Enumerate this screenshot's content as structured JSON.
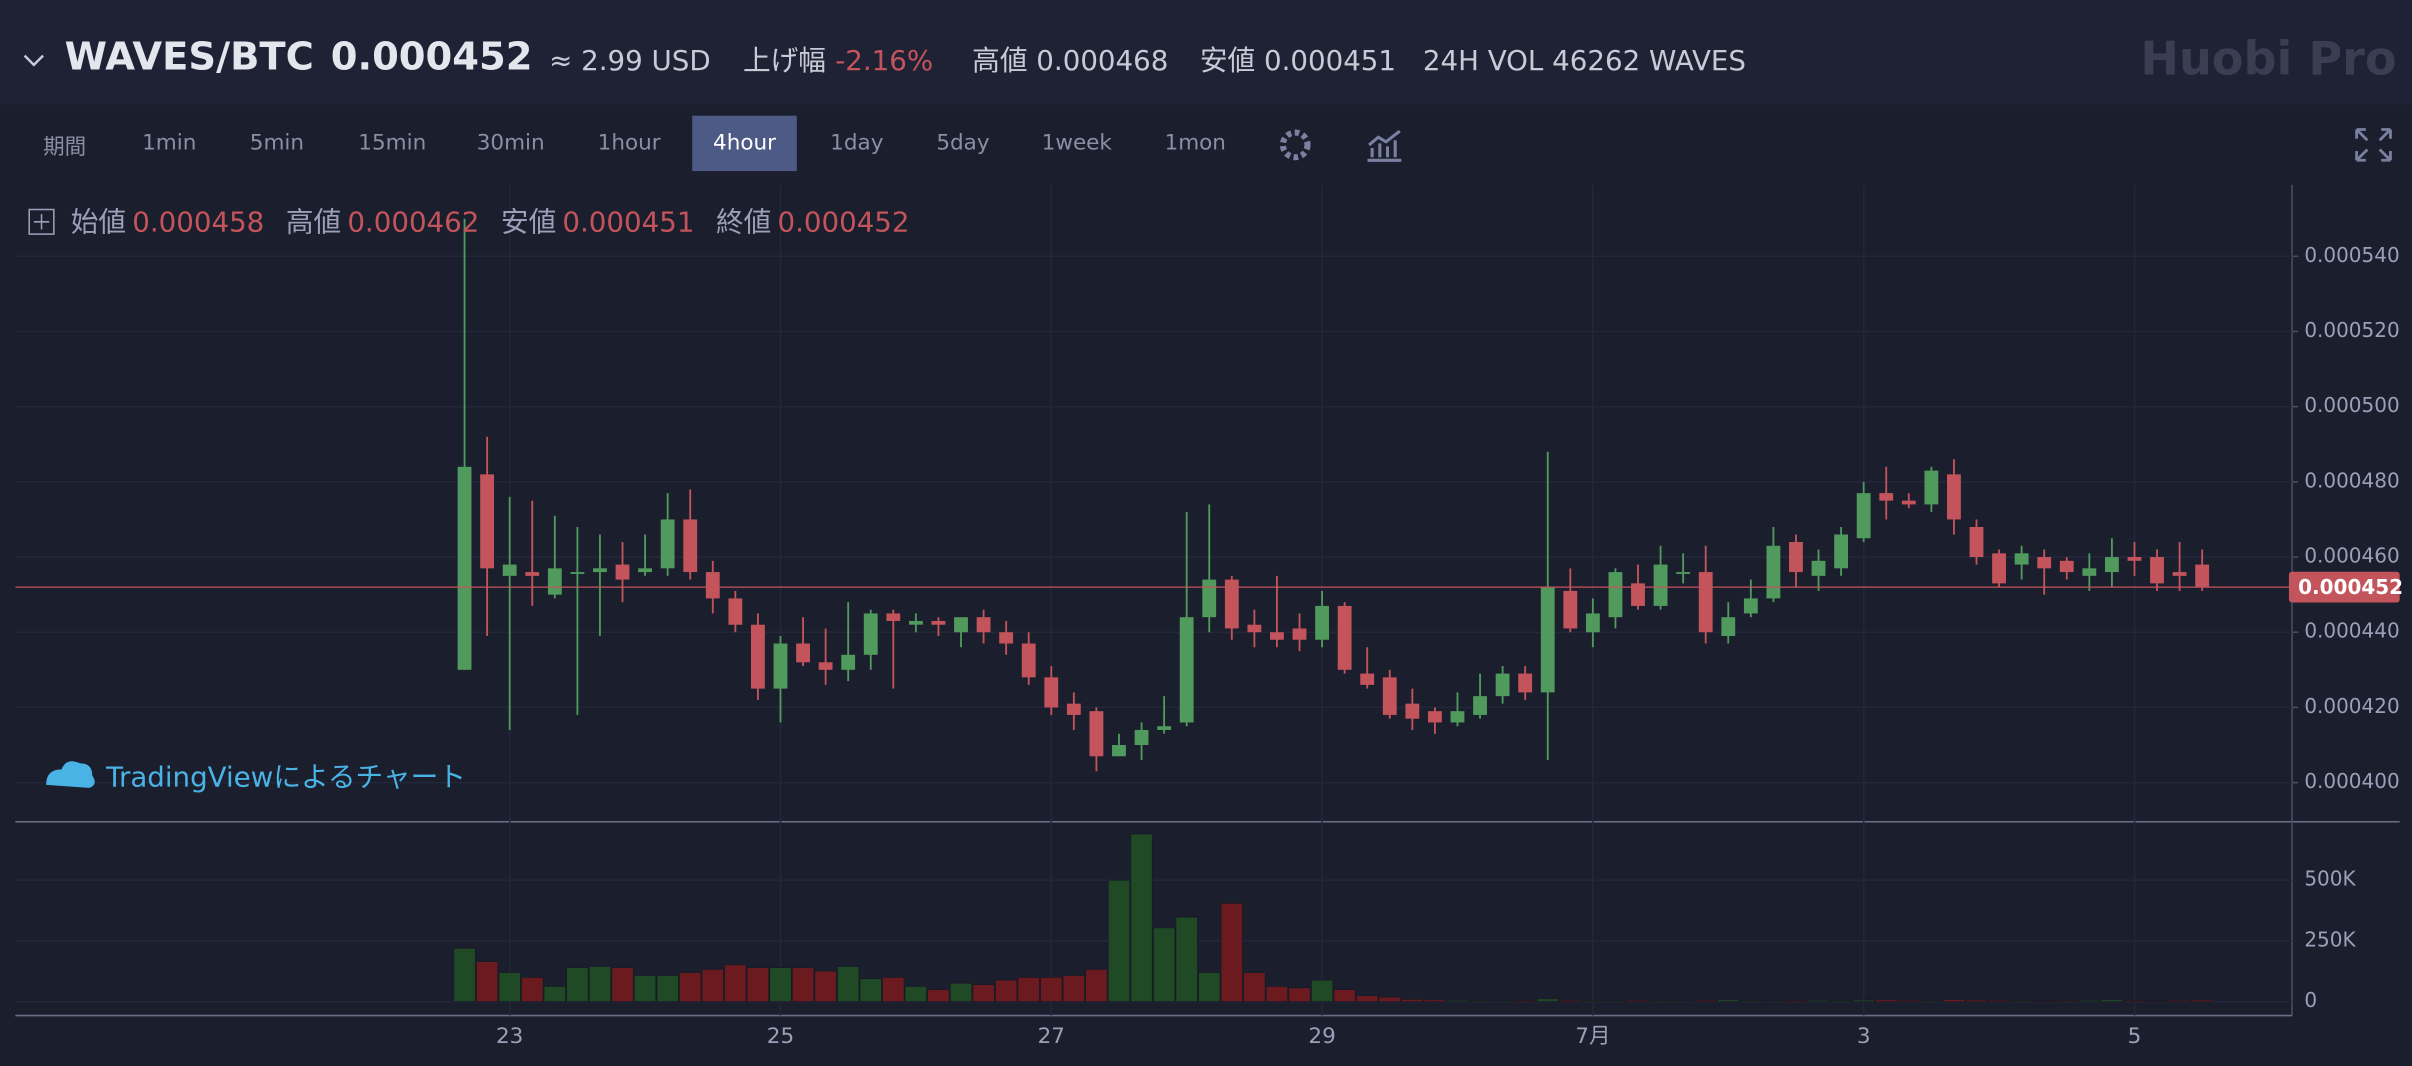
{
  "header": {
    "pair": "WAVES/BTC",
    "price": "0.000452",
    "usd": "≈ 2.99 USD",
    "change_label": "上げ幅",
    "change": "-2.16%",
    "high": "高値 0.000468",
    "low": "安値 0.000451",
    "volume": "24H VOL 46262 WAVES",
    "brand": "Huobi Pro"
  },
  "toolbar": {
    "period_label": "期間",
    "intervals": [
      "1min",
      "5min",
      "15min",
      "30min",
      "1hour",
      "4hour",
      "1day",
      "5day",
      "1week",
      "1mon"
    ],
    "active": "4hour"
  },
  "legend": [
    {
      "label": "始値",
      "value": "0.000458"
    },
    {
      "label": "高値",
      "value": "0.000462"
    },
    {
      "label": "安値",
      "value": "0.000451"
    },
    {
      "label": "終値",
      "value": "0.000452"
    }
  ],
  "watermark": "TradingViewによるチャート",
  "chart_data": [
    {
      "type": "candlestick",
      "up_color": "#4f9a5c",
      "down_color": "#c4545c",
      "categories": [
        null,
        null,
        "23",
        null,
        null,
        null,
        null,
        null,
        null,
        null,
        null,
        null,
        null,
        null,
        "25",
        null,
        null,
        null,
        null,
        null,
        null,
        null,
        null,
        null,
        null,
        null,
        "27",
        null,
        null,
        null,
        null,
        null,
        null,
        null,
        null,
        null,
        null,
        null,
        "29",
        null,
        null,
        null,
        null,
        null,
        null,
        null,
        null,
        null,
        null,
        null,
        "7月",
        null,
        null,
        null,
        null,
        null,
        null,
        null,
        null,
        null,
        null,
        null,
        "3",
        null,
        null,
        null,
        null,
        null,
        null,
        null,
        null,
        null,
        null,
        null,
        "5",
        null,
        null,
        null
      ],
      "open": [
        0.00043,
        0.000482,
        0.000455,
        0.000456,
        0.00045,
        0.000456,
        0.000456,
        0.000458,
        0.000456,
        0.000457,
        0.00047,
        0.000456,
        0.000449,
        0.000442,
        0.000425,
        0.000437,
        0.000432,
        0.00043,
        0.000434,
        0.000445,
        0.000442,
        0.000443,
        0.00044,
        0.000444,
        0.00044,
        0.000437,
        0.000428,
        0.000421,
        0.000419,
        0.000407,
        0.00041,
        0.000414,
        0.000416,
        0.000444,
        0.000454,
        0.000442,
        0.00044,
        0.000441,
        0.000438,
        0.000447,
        0.000429,
        0.000428,
        0.000421,
        0.000419,
        0.000416,
        0.000418,
        0.000423,
        0.000429,
        0.000424,
        0.000451,
        0.00044,
        0.000444,
        0.000453,
        0.000447,
        0.000456,
        0.000456,
        0.000439,
        0.000445,
        0.000449,
        0.000464,
        0.000455,
        0.000457,
        0.000465,
        0.000477,
        0.000475,
        0.000474,
        0.000482,
        0.000468,
        0.000461,
        0.000458,
        0.00046,
        0.000459,
        0.000455,
        0.000456,
        0.00046,
        0.00046,
        0.000456,
        0.000458
      ],
      "high": [
        0.00055,
        0.000492,
        0.000476,
        0.000475,
        0.000471,
        0.000468,
        0.000466,
        0.000464,
        0.000466,
        0.000477,
        0.000478,
        0.000459,
        0.000451,
        0.000445,
        0.000439,
        0.000444,
        0.000441,
        0.000448,
        0.000446,
        0.000446,
        0.000445,
        0.000444,
        0.000444,
        0.000446,
        0.000443,
        0.00044,
        0.000431,
        0.000424,
        0.00042,
        0.000413,
        0.000416,
        0.000423,
        0.000472,
        0.000474,
        0.000455,
        0.000446,
        0.000455,
        0.000445,
        0.000451,
        0.000448,
        0.000436,
        0.00043,
        0.000425,
        0.00042,
        0.000424,
        0.000429,
        0.000431,
        0.000431,
        0.000488,
        0.000457,
        0.000449,
        0.000457,
        0.000458,
        0.000463,
        0.000461,
        0.000463,
        0.000448,
        0.000454,
        0.000468,
        0.000466,
        0.000462,
        0.000468,
        0.00048,
        0.000484,
        0.000477,
        0.000484,
        0.000486,
        0.00047,
        0.000462,
        0.000463,
        0.000462,
        0.00046,
        0.000461,
        0.000465,
        0.000464,
        0.000462,
        0.000464,
        0.000462
      ],
      "low": [
        0.00043,
        0.000439,
        0.000414,
        0.000447,
        0.000449,
        0.000418,
        0.000439,
        0.000448,
        0.000455,
        0.000455,
        0.000454,
        0.000445,
        0.00044,
        0.000422,
        0.000416,
        0.000431,
        0.000426,
        0.000427,
        0.00043,
        0.000425,
        0.00044,
        0.000439,
        0.000436,
        0.000437,
        0.000434,
        0.000426,
        0.000418,
        0.000414,
        0.000403,
        0.000407,
        0.000406,
        0.000413,
        0.000415,
        0.00044,
        0.000438,
        0.000436,
        0.000436,
        0.000435,
        0.000436,
        0.000429,
        0.000425,
        0.000417,
        0.000414,
        0.000413,
        0.000415,
        0.000417,
        0.000421,
        0.000422,
        0.000406,
        0.00044,
        0.000436,
        0.000441,
        0.000446,
        0.000446,
        0.000453,
        0.000437,
        0.000437,
        0.000444,
        0.000448,
        0.000452,
        0.000451,
        0.000455,
        0.000464,
        0.00047,
        0.000473,
        0.000472,
        0.000466,
        0.000458,
        0.000452,
        0.000454,
        0.00045,
        0.000454,
        0.000451,
        0.000452,
        0.000455,
        0.000451,
        0.000451,
        0.000451
      ],
      "close": [
        0.000484,
        0.000457,
        0.000458,
        0.000455,
        0.000457,
        0.000456,
        0.000457,
        0.000454,
        0.000457,
        0.00047,
        0.000456,
        0.000449,
        0.000442,
        0.000425,
        0.000437,
        0.000432,
        0.00043,
        0.000434,
        0.000445,
        0.000443,
        0.000443,
        0.000442,
        0.000444,
        0.00044,
        0.000437,
        0.000428,
        0.00042,
        0.000418,
        0.000407,
        0.00041,
        0.000414,
        0.000415,
        0.000444,
        0.000454,
        0.000441,
        0.00044,
        0.000438,
        0.000438,
        0.000447,
        0.00043,
        0.000426,
        0.000418,
        0.000417,
        0.000416,
        0.000419,
        0.000423,
        0.000429,
        0.000424,
        0.000452,
        0.000441,
        0.000445,
        0.000456,
        0.000447,
        0.000458,
        0.000456,
        0.00044,
        0.000444,
        0.000449,
        0.000463,
        0.000456,
        0.000459,
        0.000466,
        0.000477,
        0.000475,
        0.000474,
        0.000483,
        0.00047,
        0.00046,
        0.000453,
        0.000461,
        0.000457,
        0.000456,
        0.000457,
        0.00046,
        0.000459,
        0.000453,
        0.000455,
        0.000452
      ],
      "ylim": [
        0.00039,
        0.000559
      ],
      "yticks": [
        {
          "value": 0.0004,
          "label": "0.000400"
        },
        {
          "value": 0.00042,
          "label": "0.000420"
        },
        {
          "value": 0.00044,
          "label": "0.000440"
        },
        {
          "value": 0.00046,
          "label": "0.000460"
        },
        {
          "value": 0.00048,
          "label": "0.000480"
        },
        {
          "value": 0.0005,
          "label": "0.000500"
        },
        {
          "value": 0.00052,
          "label": "0.000520"
        },
        {
          "value": 0.00054,
          "label": "0.000540"
        }
      ],
      "last_price": {
        "value": 0.000452,
        "label": "0.000452",
        "color": "#c4545c"
      },
      "grid": true
    },
    {
      "type": "bar",
      "up_color": "#1f4a25",
      "down_color": "#6b1b1f",
      "values": [
        220000,
        165000,
        120000,
        100000,
        63000,
        140000,
        145000,
        140000,
        108000,
        108000,
        120000,
        133000,
        152000,
        140000,
        140000,
        140000,
        126000,
        145000,
        95000,
        100000,
        63000,
        50000,
        76000,
        70000,
        89000,
        100000,
        100000,
        108000,
        133000,
        500000,
        690000,
        304000,
        348000,
        120000,
        405000,
        120000,
        63000,
        57000,
        89000,
        50000,
        25000,
        19000,
        10000,
        8000,
        6000,
        5000,
        4000,
        5000,
        12000,
        6000,
        5000,
        4000,
        6000,
        5000,
        4000,
        6000,
        8000,
        5000,
        4000,
        5000,
        6000,
        5000,
        7000,
        8000,
        6000,
        5000,
        9000,
        7000,
        6000,
        5000,
        4000,
        5000,
        6000,
        9000,
        5000,
        4000,
        6000,
        7000
      ],
      "ylim": [
        -57000,
        734000
      ],
      "yticks": [
        0,
        {
          "value": 250000,
          "label": "250K"
        },
        {
          "value": 500000,
          "label": "500K"
        }
      ]
    }
  ]
}
